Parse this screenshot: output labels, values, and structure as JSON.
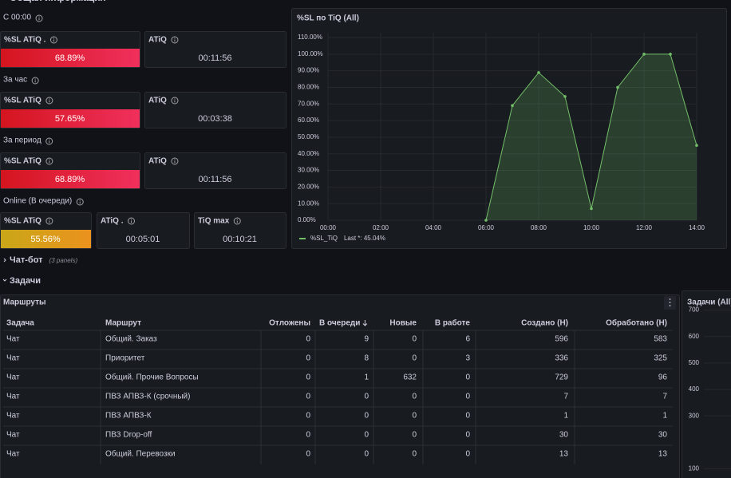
{
  "header": {
    "title": "Общая информация"
  },
  "stats": [
    {
      "label": "С 00:00",
      "panels": [
        {
          "title": "%SL ATiQ .",
          "value": "68.89%",
          "color": [
            "#d4151f",
            "#f0305c"
          ]
        },
        {
          "title": "ATiQ",
          "value": "00:11:56"
        }
      ]
    },
    {
      "label": "За час",
      "panels": [
        {
          "title": "%SL ATiQ",
          "value": "57.65%",
          "color": [
            "#d4151f",
            "#f0305c"
          ]
        },
        {
          "title": "ATiQ",
          "value": "00:03:38"
        }
      ]
    },
    {
      "label": "За период",
      "panels": [
        {
          "title": "%SL ATiQ",
          "value": "68.89%",
          "color": [
            "#d4151f",
            "#f0305c"
          ]
        },
        {
          "title": "ATiQ",
          "value": "00:11:56"
        }
      ]
    },
    {
      "label": "Online (В очереди)",
      "panels": [
        {
          "title": "%SL ATiQ",
          "value": "55.56%",
          "color": [
            "#c9a718",
            "#eb921d"
          ]
        },
        {
          "title": "ATiQ .",
          "value": "00:05:01"
        },
        {
          "title": "TiQ max",
          "value": "00:10:21"
        }
      ]
    }
  ],
  "chart_data": [
    {
      "type": "line",
      "title": "%SL по TiQ (All)",
      "x": [
        6,
        7,
        8,
        9,
        10,
        11,
        12,
        13,
        14
      ],
      "series": [
        {
          "name": "%SL_TiQ",
          "color": "#73bf69",
          "values": [
            0,
            69,
            88.9,
            74.5,
            7,
            80,
            100,
            100,
            45.04
          ]
        }
      ],
      "legend_value": "Last *: 45.04%",
      "xlim": [
        0,
        14
      ],
      "xticks": [
        {
          "value": 0,
          "label": "00:00"
        },
        {
          "value": 2,
          "label": "02:00"
        },
        {
          "value": 4,
          "label": "04:00"
        },
        {
          "value": 6,
          "label": "06:00"
        },
        {
          "value": 8,
          "label": "08:00"
        },
        {
          "value": 10,
          "label": "10:00"
        },
        {
          "value": 12,
          "label": "12:00"
        },
        {
          "value": 14,
          "label": "14:00"
        }
      ],
      "ylim": [
        0,
        110
      ],
      "yticks": [
        {
          "value": 0,
          "label": "0.00%"
        },
        {
          "value": 10,
          "label": "10.00%"
        },
        {
          "value": 20,
          "label": "20.00%"
        },
        {
          "value": 30,
          "label": "30.00%"
        },
        {
          "value": 40,
          "label": "40.00%"
        },
        {
          "value": 50,
          "label": "50.00%"
        },
        {
          "value": 60,
          "label": "60.00%"
        },
        {
          "value": 70,
          "label": "70.00%"
        },
        {
          "value": 80,
          "label": "80.00%"
        },
        {
          "value": 90,
          "label": "90.00%"
        },
        {
          "value": 100,
          "label": "100.00%"
        },
        {
          "value": 110,
          "label": "110.00%"
        }
      ],
      "grid": true
    },
    {
      "type": "line",
      "title": "Задачи (All)",
      "ylim": [
        65,
        720
      ],
      "yticks": [
        100,
        300,
        400,
        500,
        600,
        700
      ],
      "grid": true
    }
  ],
  "rows": [
    {
      "title": "Чат-бот",
      "note": "(3 panels)"
    },
    {
      "title": "Задачи"
    }
  ],
  "table": {
    "title": "Маршруты",
    "columns": [
      "Задача",
      "Маршрут",
      "Отложены",
      "В очереди",
      "Новые",
      "В работе",
      "Создано (Н)",
      "Обработано (Н)"
    ],
    "rows": [
      [
        "Чат",
        "Общий. Заказ",
        0,
        9,
        0,
        6,
        596,
        583
      ],
      [
        "Чат",
        "Приоритет",
        0,
        8,
        0,
        3,
        336,
        325
      ],
      [
        "Чат",
        "Общий. Прочие Вопросы",
        0,
        1,
        632,
        0,
        729,
        96
      ],
      [
        "Чат",
        "ПВЗ АПВЗ-К (срочный)",
        0,
        0,
        0,
        0,
        7,
        7
      ],
      [
        "Чат",
        "ПВЗ АПВЗ-К",
        0,
        0,
        0,
        0,
        1,
        1
      ],
      [
        "Чат",
        "ПВЗ Drop-off",
        0,
        0,
        0,
        0,
        30,
        30
      ],
      [
        "Чат",
        "Общий. Перевозки",
        0,
        0,
        0,
        0,
        13,
        13
      ]
    ]
  }
}
